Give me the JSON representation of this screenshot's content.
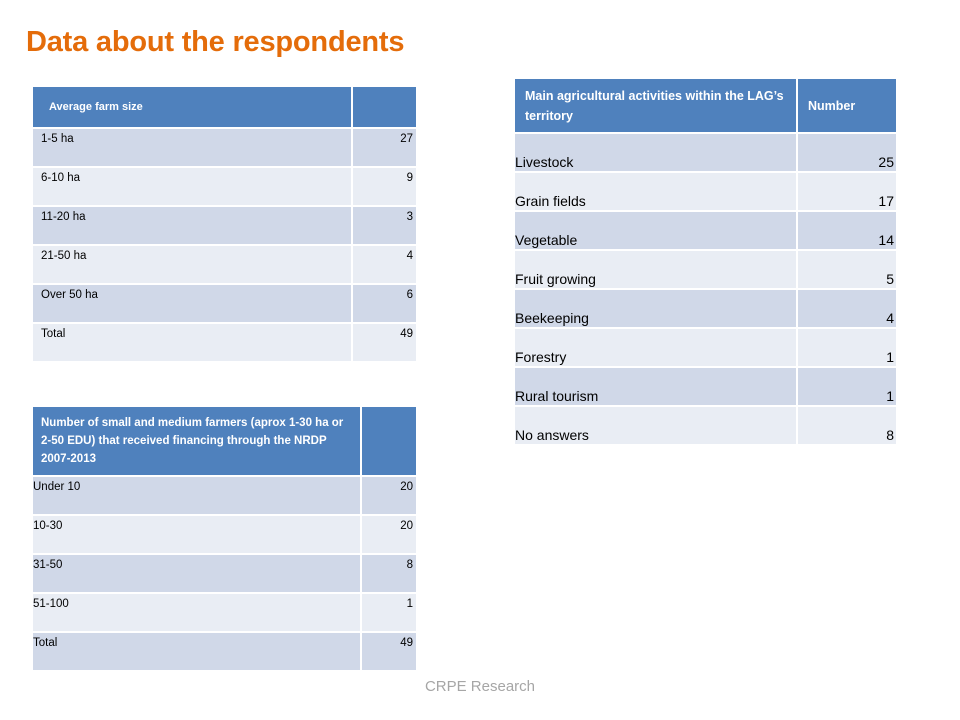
{
  "title": "Data about the respondents",
  "farm_size_table": {
    "header": "Average  farm size",
    "header_value": "",
    "rows": [
      {
        "label": "1-5 ha",
        "value": "27"
      },
      {
        "label": "6-10 ha",
        "value": "9"
      },
      {
        "label": "11-20 ha",
        "value": "3"
      },
      {
        "label": "21-50 ha",
        "value": "4"
      },
      {
        "label": "Over 50 ha",
        "value": "6"
      },
      {
        "label": "Total",
        "value": "49"
      }
    ]
  },
  "activities_table": {
    "header": "Main agricultural activities within the LAG’s territory",
    "header_value": "Number",
    "rows": [
      {
        "label": "Livestock",
        "value": "25"
      },
      {
        "label": "Grain fields",
        "value": "17"
      },
      {
        "label": "Vegetable",
        "value": "14"
      },
      {
        "label": "Fruit growing",
        "value": "5"
      },
      {
        "label": "Beekeeping",
        "value": "4"
      },
      {
        "label": "Forestry",
        "value": "1"
      },
      {
        "label": "Rural tourism",
        "value": "1"
      },
      {
        "label": "No answers",
        "value": "8"
      }
    ]
  },
  "financing_table": {
    "header": "Number of small and medium farmers (aprox 1-30 ha or 2-50 EDU) that received financing through the NRDP 2007-2013",
    "header_value": "",
    "rows": [
      {
        "label": "Under 10",
        "value": "20"
      },
      {
        "label": "10-30",
        "value": "20"
      },
      {
        "label": "31-50",
        "value": "8"
      },
      {
        "label": "51-100",
        "value": "1"
      },
      {
        "label": "Total",
        "value": "49"
      }
    ]
  },
  "footer": "CRPE Research",
  "colors": {
    "title": "#e46c0a",
    "header_bg": "#4f81bd",
    "row_dark": "#d0d8e8",
    "row_light": "#e9edf4",
    "footer": "#a6a6a6"
  }
}
